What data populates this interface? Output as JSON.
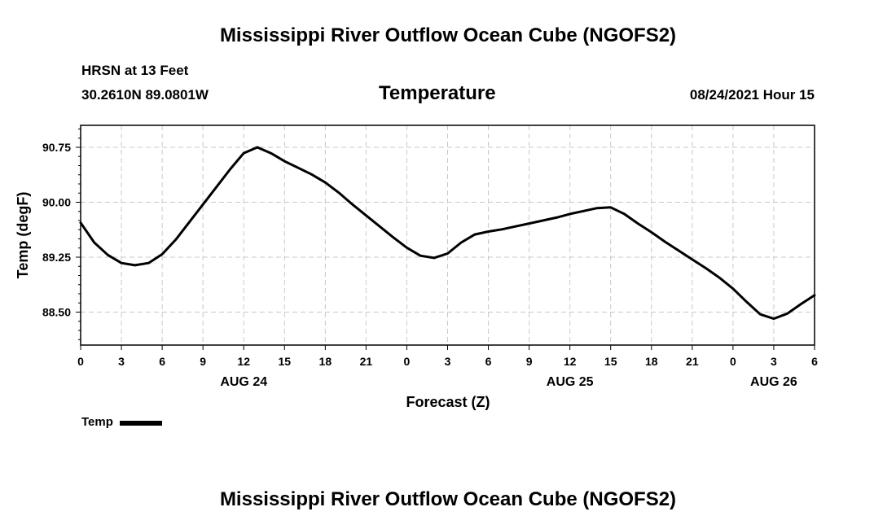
{
  "header": {
    "title": "Mississippi River Outflow Ocean Cube (NGOFS2)",
    "station": "HRSN at 13 Feet",
    "coordinates": "30.2610N  89.0801W",
    "subtitle": "Temperature",
    "datetime": "08/24/2021 Hour 15"
  },
  "footer": {
    "title": "Mississippi River Outflow Ocean Cube (NGOFS2)"
  },
  "chart_data": {
    "type": "line",
    "title": "Temperature",
    "xlabel": "Forecast (Z)",
    "ylabel": "Temp (degF)",
    "xlim": [
      0,
      54
    ],
    "ylim": [
      88.05,
      91.05
    ],
    "yticks": [
      88.5,
      89.25,
      90.0,
      90.75
    ],
    "ytick_labels": [
      "88.50",
      "89.25",
      "90.00",
      "90.75"
    ],
    "xticks": [
      0,
      3,
      6,
      9,
      12,
      15,
      18,
      21,
      24,
      27,
      30,
      33,
      36,
      39,
      42,
      45,
      48,
      51,
      54
    ],
    "xtick_labels": [
      "0",
      "3",
      "6",
      "9",
      "12",
      "15",
      "18",
      "21",
      "0",
      "3",
      "6",
      "9",
      "12",
      "15",
      "18",
      "21",
      "0",
      "3",
      "6"
    ],
    "date_labels": [
      {
        "x": 12,
        "label": "AUG 24"
      },
      {
        "x": 36,
        "label": "AUG 25"
      },
      {
        "x": 51,
        "label": "AUG 26"
      }
    ],
    "grid": true,
    "legend": "bottom-left",
    "series": [
      {
        "name": "Temp",
        "color": "#000000",
        "x": [
          0,
          1,
          2,
          3,
          4,
          5,
          6,
          7,
          8,
          9,
          10,
          11,
          12,
          13,
          14,
          15,
          16,
          17,
          18,
          19,
          20,
          21,
          22,
          23,
          24,
          25,
          26,
          27,
          28,
          29,
          30,
          31,
          32,
          33,
          34,
          35,
          36,
          37,
          38,
          39,
          40,
          41,
          42,
          43,
          44,
          45,
          46,
          47,
          48,
          49,
          50,
          51,
          52,
          53,
          54
        ],
        "values": [
          89.72,
          89.45,
          89.28,
          89.17,
          89.14,
          89.17,
          89.29,
          89.49,
          89.73,
          89.97,
          90.21,
          90.45,
          90.67,
          90.75,
          90.67,
          90.56,
          90.47,
          90.38,
          90.27,
          90.13,
          89.97,
          89.82,
          89.67,
          89.52,
          89.38,
          89.27,
          89.24,
          89.3,
          89.45,
          89.56,
          89.6,
          89.63,
          89.67,
          89.71,
          89.75,
          89.79,
          89.84,
          89.88,
          89.92,
          89.93,
          89.84,
          89.71,
          89.59,
          89.46,
          89.34,
          89.22,
          89.1,
          88.97,
          88.82,
          88.64,
          88.47,
          88.41,
          88.48,
          88.61,
          88.73
        ]
      }
    ]
  }
}
